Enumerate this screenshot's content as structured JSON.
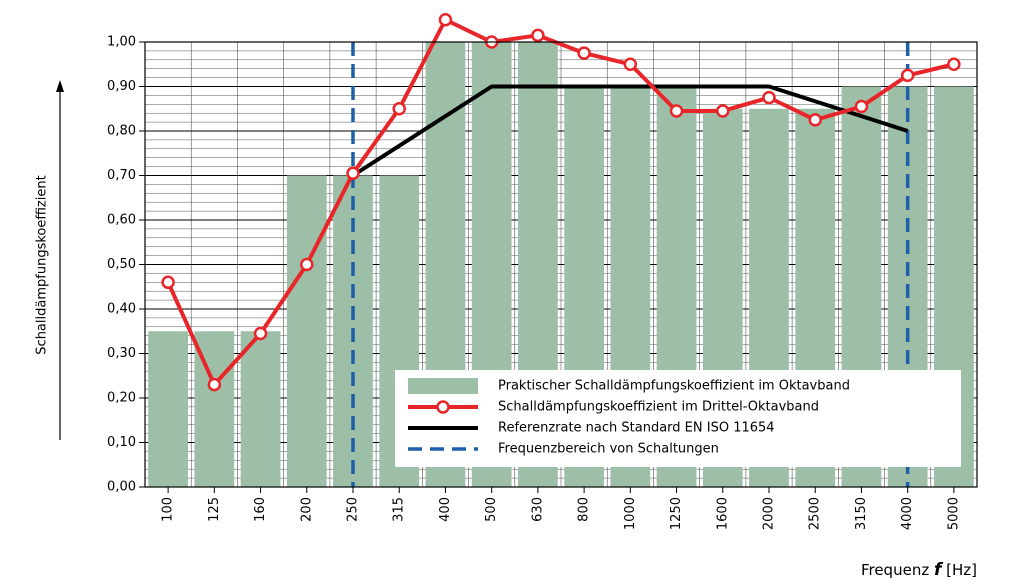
{
  "chart_data": {
    "type": "bar",
    "y_label": "Schalldämpfungskoeffizient",
    "x_label_parts": [
      "Frequenz ",
      "f",
      " [Hz]"
    ],
    "categories": [
      "100",
      "125",
      "160",
      "200",
      "250",
      "315",
      "400",
      "500",
      "630",
      "800",
      "1000",
      "1250",
      "1600",
      "2000",
      "2500",
      "3150",
      "4000",
      "5000"
    ],
    "ylim": [
      0,
      1.0
    ],
    "yticks": [
      {
        "value": 0,
        "label": "0,00"
      },
      {
        "value": 0.1,
        "label": "0,10"
      },
      {
        "value": 0.2,
        "label": "0,20"
      },
      {
        "value": 0.3,
        "label": "0,30"
      },
      {
        "value": 0.4,
        "label": "0,40"
      },
      {
        "value": 0.5,
        "label": "0,50"
      },
      {
        "value": 0.6,
        "label": "0,60"
      },
      {
        "value": 0.7,
        "label": "0,70"
      },
      {
        "value": 0.8,
        "label": "0,80"
      },
      {
        "value": 0.9,
        "label": "0,90"
      },
      {
        "value": 1.0,
        "label": "1,00"
      }
    ],
    "grid": true,
    "minor_grid_step": 0.02,
    "series": [
      {
        "name": "Praktischer Schalldämpfungskoeffizient im Oktavband",
        "type": "bar",
        "color": "#9dbfa7",
        "values": [
          0.35,
          0.35,
          0.35,
          0.7,
          0.7,
          0.7,
          1.0,
          1.0,
          1.0,
          0.9,
          0.9,
          0.9,
          0.85,
          0.85,
          0.85,
          0.9,
          0.9,
          0.9
        ]
      },
      {
        "name": "Schalldämpfungskoeffizient im Drittel-Oktavband",
        "type": "line",
        "color": "#e8262a",
        "values": [
          0.46,
          0.23,
          0.345,
          0.5,
          0.705,
          0.85,
          1.05,
          1.0,
          1.015,
          0.975,
          0.95,
          0.845,
          0.845,
          0.875,
          0.825,
          0.855,
          0.925,
          0.95
        ]
      },
      {
        "name": "Referenzrate nach Standard EN ISO 11654",
        "type": "reference",
        "color": "#000000",
        "x": [
          "250",
          "500",
          "2000",
          "4000"
        ],
        "values": [
          0.7,
          0.9,
          0.9,
          0.8
        ]
      },
      {
        "name": "Frequenzbereich von Schaltungen",
        "type": "vline",
        "color": "#1f5fa8",
        "x": [
          "250",
          "4000"
        ]
      }
    ]
  }
}
